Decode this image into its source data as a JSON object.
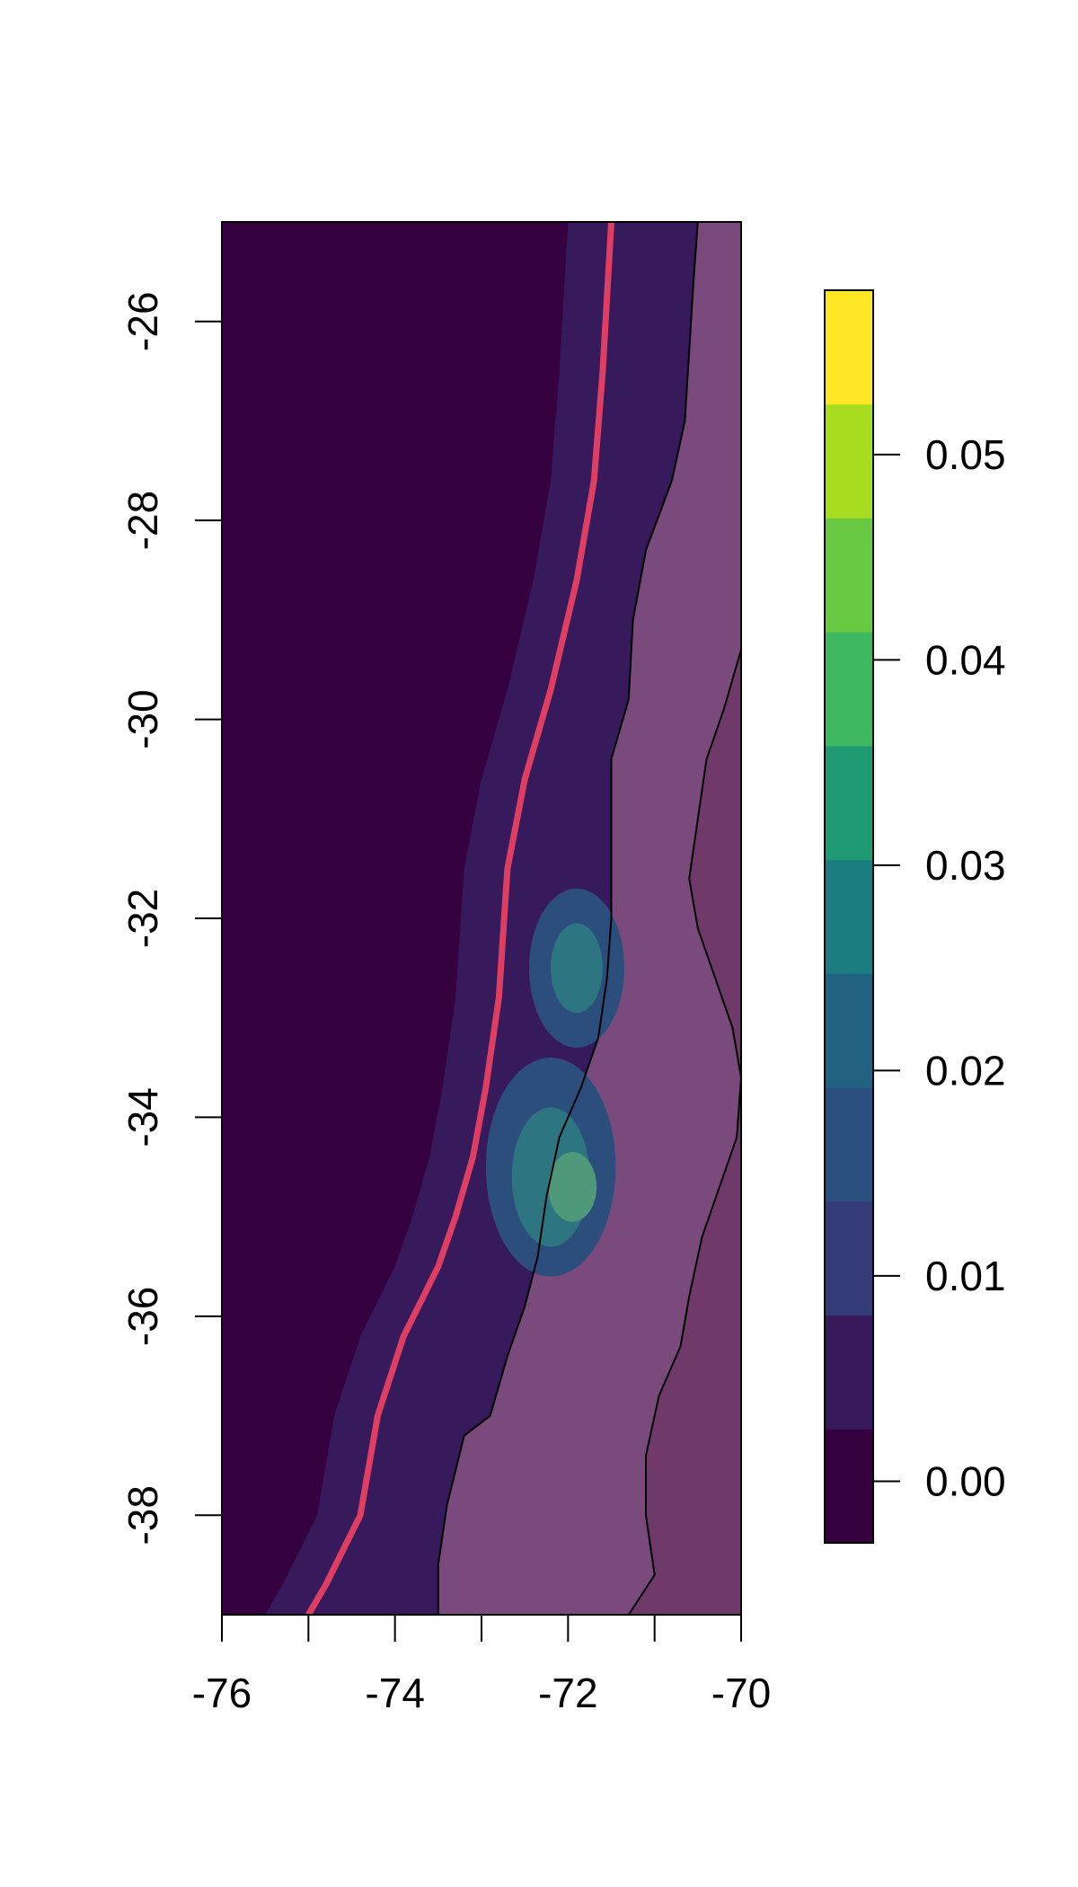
{
  "map": {
    "x_axis": {
      "ticks": [
        -76,
        -74,
        -72,
        -70
      ],
      "labels": [
        "-76",
        "-74",
        "-72",
        "-70"
      ],
      "range": [
        -76,
        -70
      ]
    },
    "y_axis": {
      "ticks": [
        -26,
        -28,
        -30,
        -32,
        -34,
        -36,
        -38
      ],
      "labels": [
        "-26",
        "-28",
        "-30",
        "-32",
        "-34",
        "-36",
        "-38"
      ],
      "range": [
        -39,
        -25
      ]
    },
    "legend": {
      "placement": "right",
      "ticks": [
        0.0,
        0.01,
        0.02,
        0.03,
        0.04,
        0.05
      ],
      "labels": [
        "0.00",
        "0.01",
        "0.02",
        "0.03",
        "0.04",
        "0.05"
      ],
      "range": [
        -0.003,
        0.058
      ],
      "bins": 11,
      "colors": [
        "#35013f",
        "#371a5c",
        "#353a78",
        "#2b4f7f",
        "#226281",
        "#1b7c80",
        "#1f9a73",
        "#3fb862",
        "#6ac943",
        "#a8dc21",
        "#fde725"
      ]
    },
    "colors": {
      "background": "#35013f",
      "coast_band": "#371a5c",
      "land_low": "#6f3a6a",
      "land_mid": "#7a4a7d",
      "land_high": "#7a5c8c",
      "hotspot_outer": "#2c4e7c",
      "hotspot_inner": "#2d7580",
      "hotspot_core": "#4f9879",
      "boundary_line": "#000000",
      "trench_line": "#de3e62"
    },
    "trench_line": {
      "points": [
        [
          -71.5,
          -25
        ],
        [
          -71.6,
          -26.5
        ],
        [
          -71.7,
          -27.6
        ],
        [
          -71.9,
          -28.6
        ],
        [
          -72.2,
          -29.7
        ],
        [
          -72.5,
          -30.6
        ],
        [
          -72.7,
          -31.5
        ],
        [
          -72.8,
          -32.8
        ],
        [
          -72.95,
          -33.7
        ],
        [
          -73.1,
          -34.4
        ],
        [
          -73.3,
          -35.0
        ],
        [
          -73.5,
          -35.5
        ],
        [
          -73.9,
          -36.2
        ],
        [
          -74.2,
          -37.0
        ],
        [
          -74.4,
          -38.0
        ],
        [
          -74.8,
          -38.7
        ],
        [
          -75.0,
          -39.0
        ]
      ]
    },
    "coastline": {
      "points": [
        [
          -70.5,
          -25
        ],
        [
          -70.55,
          -25.6
        ],
        [
          -70.6,
          -26.3
        ],
        [
          -70.65,
          -27.0
        ],
        [
          -70.8,
          -27.6
        ],
        [
          -71.1,
          -28.3
        ],
        [
          -71.25,
          -29.0
        ],
        [
          -71.3,
          -29.8
        ],
        [
          -71.5,
          -30.4
        ],
        [
          -71.5,
          -31.2
        ],
        [
          -71.5,
          -32.0
        ],
        [
          -71.55,
          -32.6
        ],
        [
          -71.65,
          -33.2
        ],
        [
          -71.85,
          -33.7
        ],
        [
          -72.1,
          -34.2
        ],
        [
          -72.25,
          -34.8
        ],
        [
          -72.35,
          -35.4
        ],
        [
          -72.5,
          -35.9
        ],
        [
          -72.7,
          -36.4
        ],
        [
          -72.9,
          -37.0
        ],
        [
          -73.2,
          -37.2
        ],
        [
          -73.4,
          -37.9
        ],
        [
          -73.5,
          -38.5
        ],
        [
          -73.5,
          -39.0
        ]
      ]
    },
    "border": {
      "points": [
        [
          -70.0,
          -29.3
        ],
        [
          -70.2,
          -29.9
        ],
        [
          -70.4,
          -30.4
        ],
        [
          -70.5,
          -31.0
        ],
        [
          -70.6,
          -31.6
        ],
        [
          -70.5,
          -32.1
        ],
        [
          -70.3,
          -32.6
        ],
        [
          -70.1,
          -33.1
        ],
        [
          -70.0,
          -33.6
        ],
        [
          -70.05,
          -34.2
        ],
        [
          -70.25,
          -34.7
        ],
        [
          -70.45,
          -35.2
        ],
        [
          -70.6,
          -35.8
        ],
        [
          -70.7,
          -36.3
        ],
        [
          -70.95,
          -36.8
        ],
        [
          -71.1,
          -37.4
        ],
        [
          -71.1,
          -38.0
        ],
        [
          -71.0,
          -38.6
        ],
        [
          -71.3,
          -39.0
        ]
      ]
    }
  }
}
